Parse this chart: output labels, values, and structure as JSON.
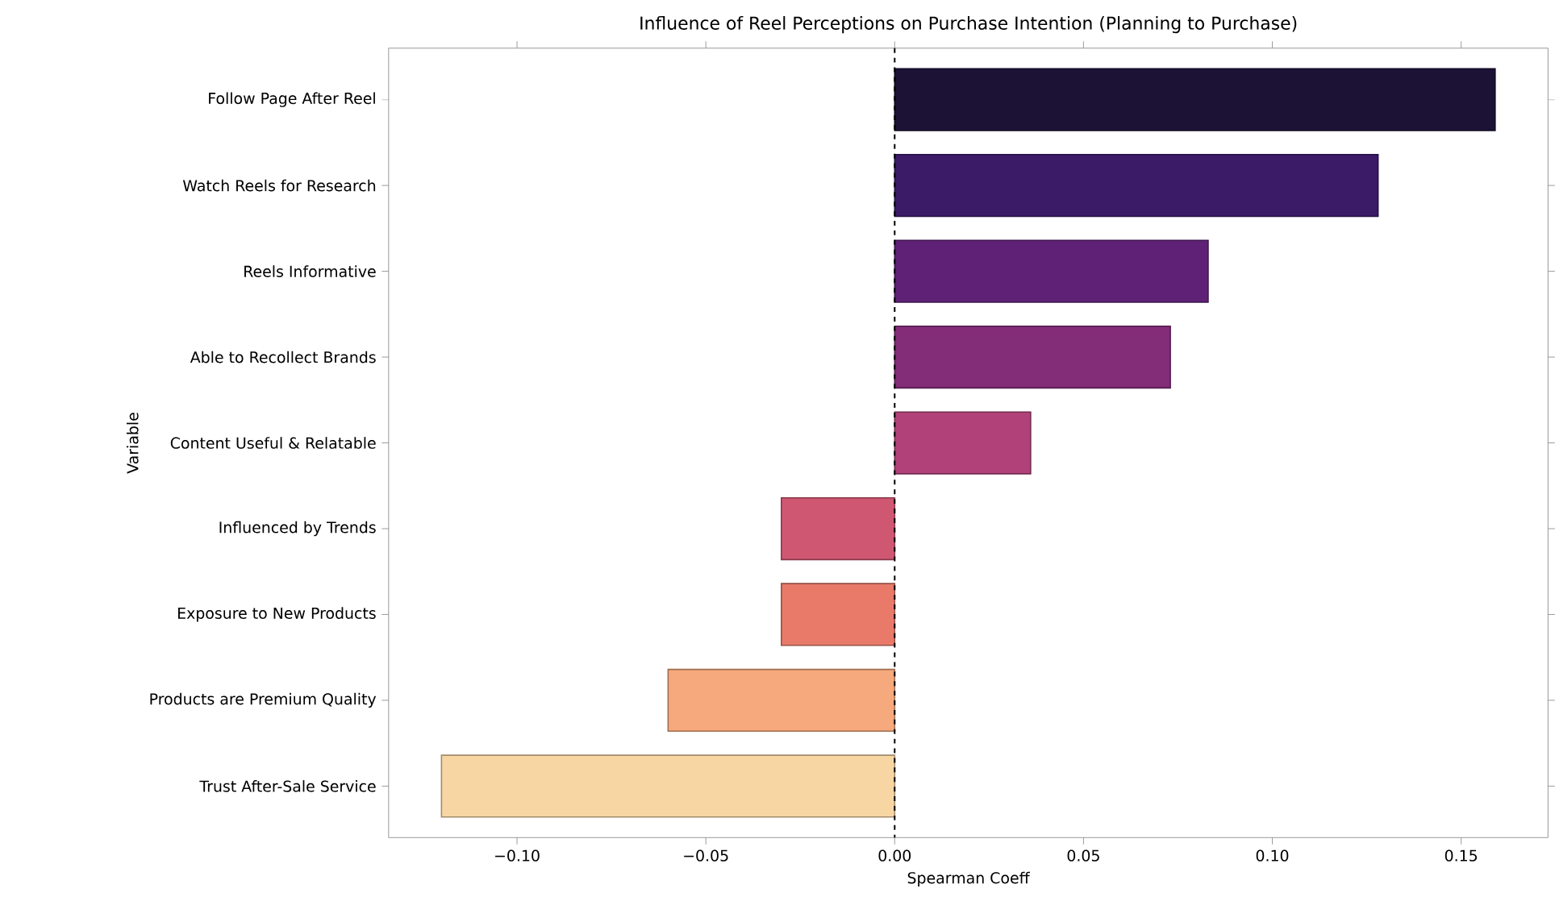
{
  "chart_data": {
    "type": "bar",
    "orientation": "horizontal",
    "title": "Influence of Reel Perceptions on Purchase Intention (Planning to Purchase)",
    "xlabel": "Spearman Coeff",
    "ylabel": "Variable",
    "categories": [
      "Follow Page After Reel",
      "Watch Reels for Research",
      "Reels Informative",
      "Able to Recollect Brands",
      "Content Useful & Relatable",
      "Influenced by Trends",
      "Exposure to New Products",
      "Products are Premium Quality",
      "Trust After-Sale Service"
    ],
    "values": [
      0.159,
      0.128,
      0.083,
      0.073,
      0.036,
      -0.03,
      -0.03,
      -0.06,
      -0.12
    ],
    "colors": [
      "#1c1236",
      "#3b1a68",
      "#5e2175",
      "#832c78",
      "#b04279",
      "#d05772",
      "#e97a6a",
      "#f5a97c",
      "#f8d6a4"
    ],
    "xlim": [
      -0.134,
      0.173
    ],
    "xticks": [
      {
        "value": -0.1,
        "label": "−0.10"
      },
      {
        "value": -0.05,
        "label": "−0.05"
      },
      {
        "value": 0,
        "label": "0.00"
      },
      {
        "value": 0.05,
        "label": "0.05"
      },
      {
        "value": 0.1,
        "label": "0.10"
      },
      {
        "value": 0.15,
        "label": "0.15"
      }
    ],
    "ref_lines": [
      {
        "axis": "x",
        "value": 0,
        "color": "#000000",
        "line_style": "dashed"
      }
    ]
  }
}
